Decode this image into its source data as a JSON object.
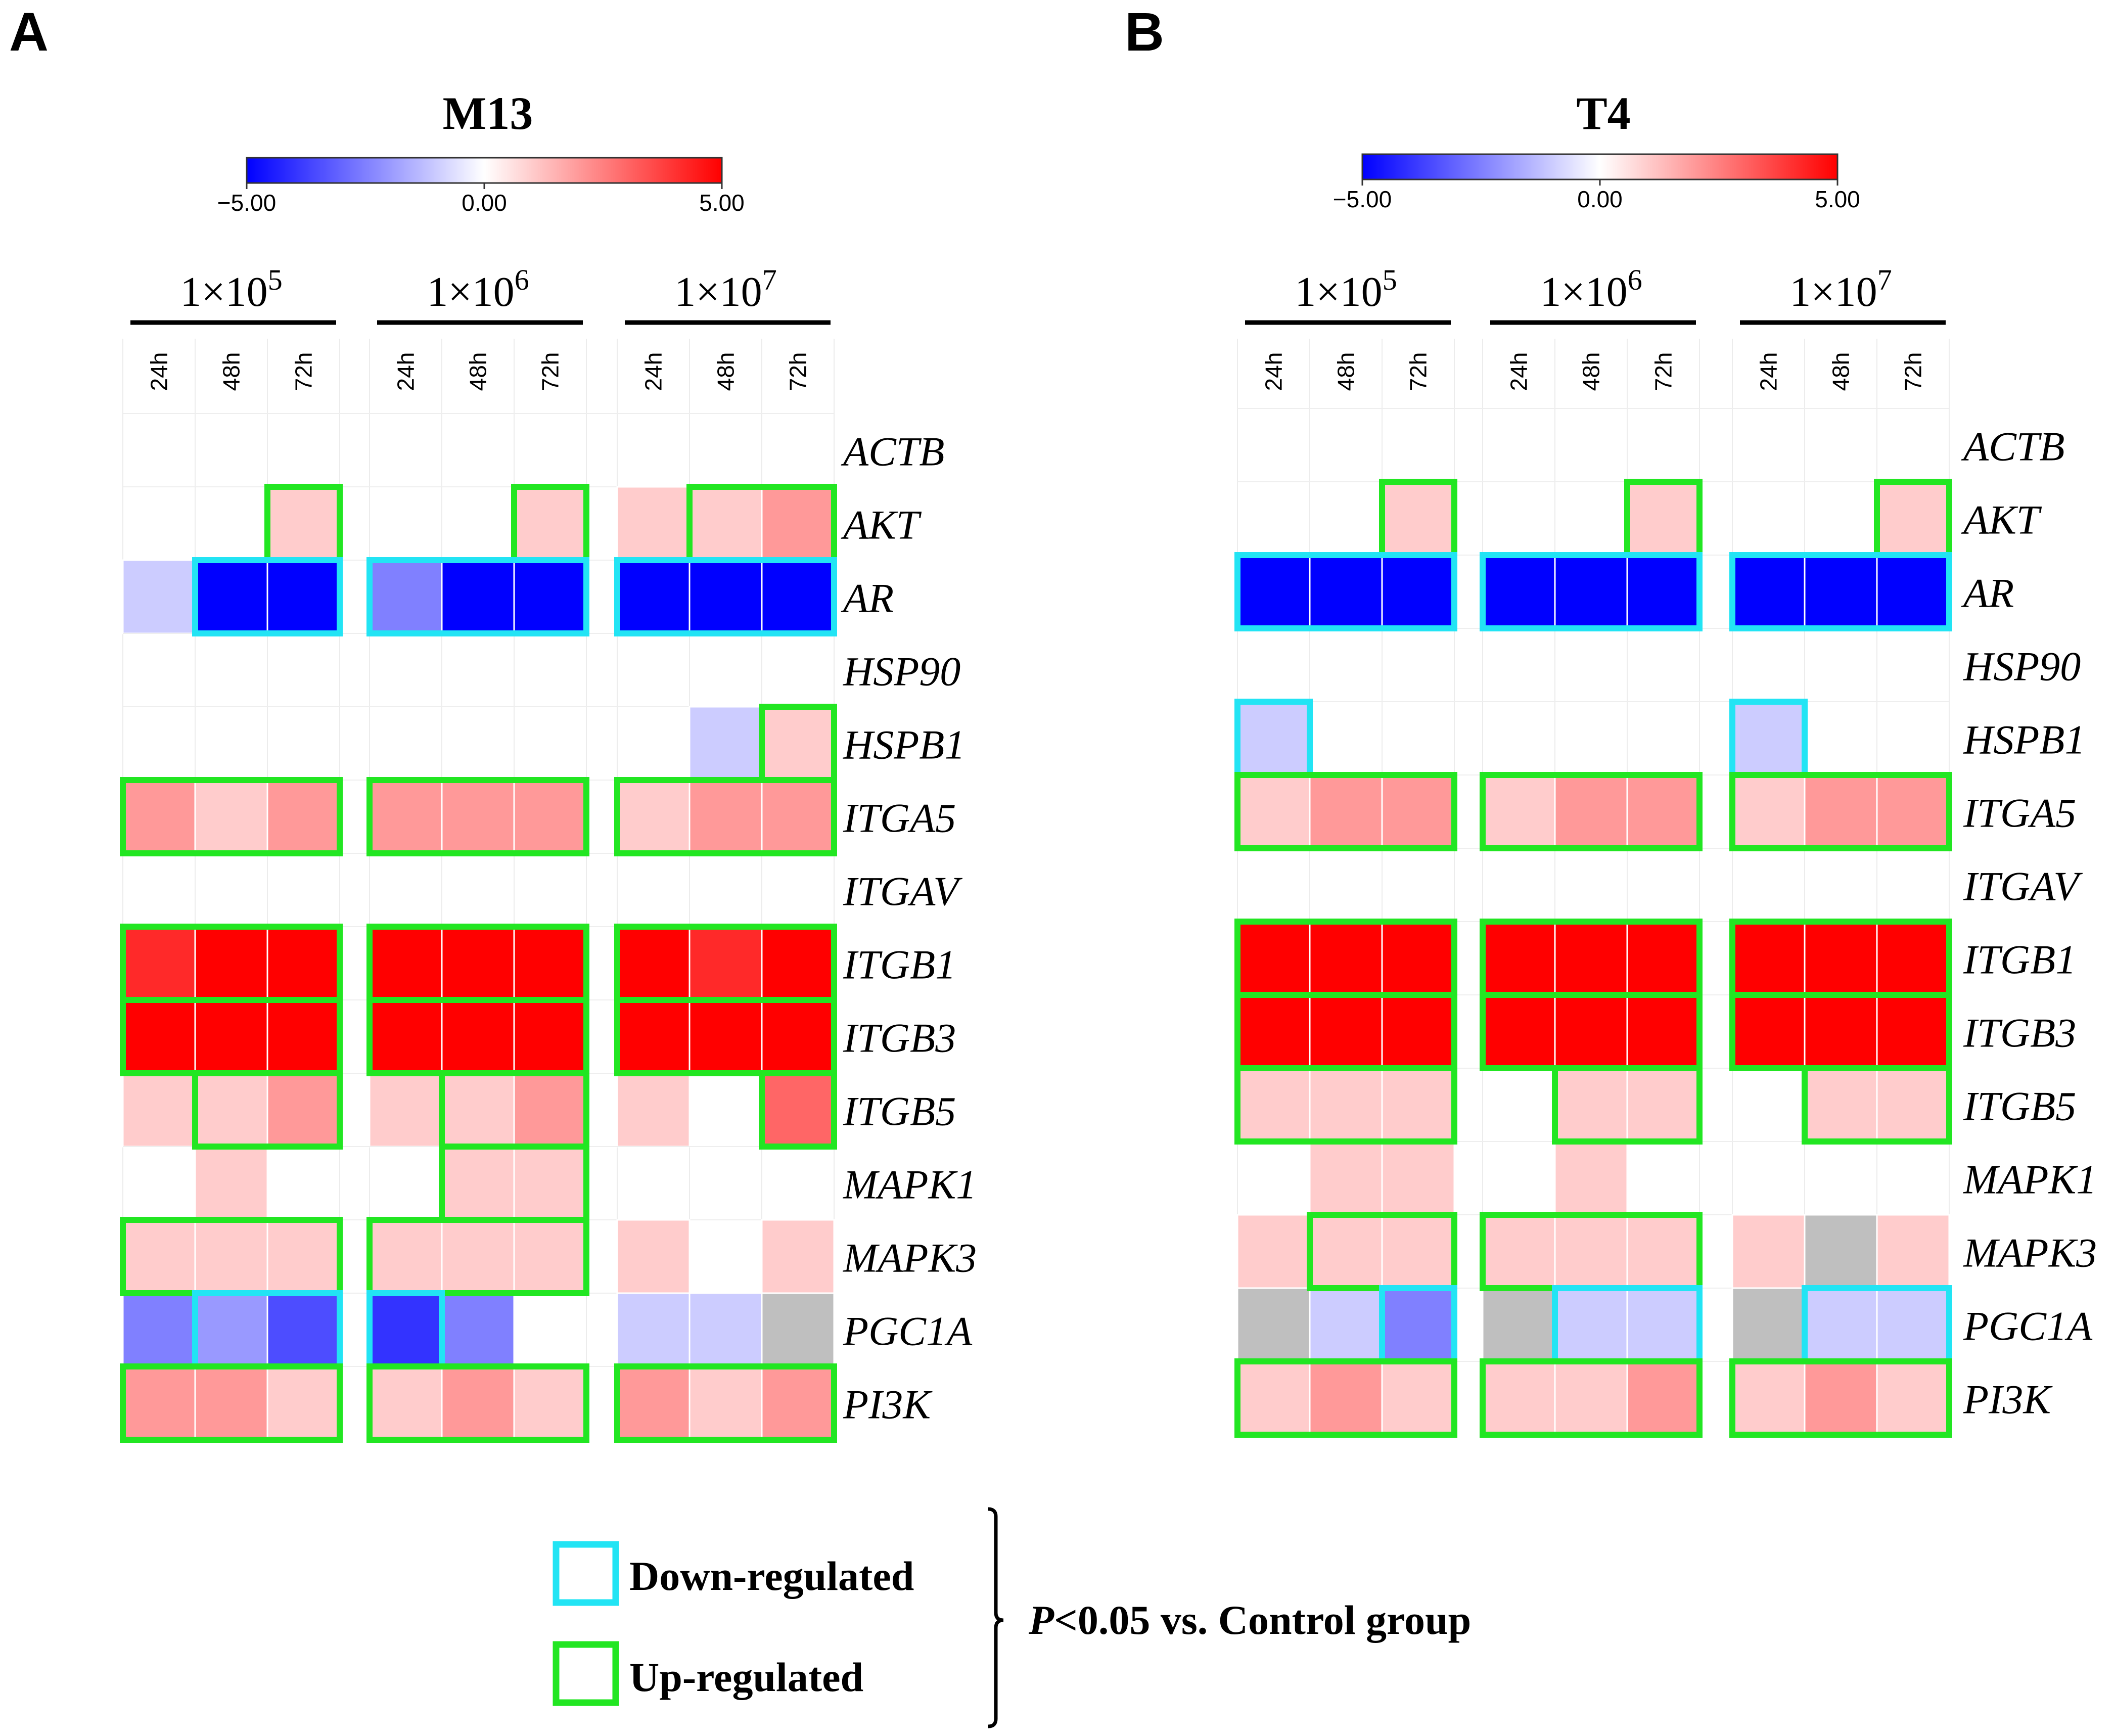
{
  "colors": {
    "low": "#0000ff",
    "mid": "#ffffff",
    "high": "#ff0000",
    "nodata": "#bfbfbf",
    "down_box": "#22e4f4",
    "up_box": "#22e622"
  },
  "legend": {
    "down_label": "Down-regulated",
    "up_label": "Up-regulated",
    "sig_p": "P",
    "sig_rest": "<0.05 vs. Control group"
  },
  "chart_data": [
    {
      "type": "heatmap",
      "panel_label": "A",
      "title": "M13",
      "color_scale": {
        "min": -5.0,
        "mid": 0.0,
        "max": 5.0,
        "tick_labels": [
          "−5.00",
          "0.00",
          "5.00"
        ]
      },
      "group_base": "1×10",
      "groups": [
        {
          "label": "1×10",
          "exp": "5"
        },
        {
          "label": "1×10",
          "exp": "6"
        },
        {
          "label": "1×10",
          "exp": "7"
        }
      ],
      "timepoints": [
        "24h",
        "48h",
        "72h"
      ],
      "genes": [
        "ACTB",
        "AKT",
        "AR",
        "HSP90",
        "HSPB1",
        "ITGA5",
        "ITGAV",
        "ITGB1",
        "ITGB3",
        "ITGB5",
        "MAPK1",
        "MAPK3",
        "PGC1A",
        "PI3K"
      ],
      "values": [
        [
          [
            0,
            0,
            0
          ],
          [
            0,
            0,
            0
          ],
          [
            0,
            0,
            0
          ]
        ],
        [
          [
            0,
            0,
            1
          ],
          [
            0,
            0,
            1
          ],
          [
            1,
            1,
            2
          ]
        ],
        [
          [
            -1,
            -5,
            -5
          ],
          [
            -2.5,
            -5,
            -5
          ],
          [
            -5,
            -5,
            -5
          ]
        ],
        [
          [
            0,
            0,
            0
          ],
          [
            0,
            0,
            0
          ],
          [
            0,
            0,
            0
          ]
        ],
        [
          [
            0,
            0,
            0
          ],
          [
            0,
            0,
            0
          ],
          [
            0,
            -1,
            1
          ]
        ],
        [
          [
            2,
            1,
            2
          ],
          [
            2,
            2,
            2
          ],
          [
            1,
            2,
            2
          ]
        ],
        [
          [
            0,
            0,
            0
          ],
          [
            0,
            0,
            0
          ],
          [
            0,
            0,
            0
          ]
        ],
        [
          [
            4.2,
            5,
            5
          ],
          [
            5,
            5,
            5
          ],
          [
            5,
            4.2,
            5
          ]
        ],
        [
          [
            5,
            5,
            5
          ],
          [
            5,
            5,
            5
          ],
          [
            5,
            5,
            5
          ]
        ],
        [
          [
            1,
            1,
            2
          ],
          [
            1,
            1,
            2
          ],
          [
            1,
            0,
            3
          ]
        ],
        [
          [
            0,
            1,
            0
          ],
          [
            0,
            1,
            1
          ],
          [
            0,
            0,
            0
          ]
        ],
        [
          [
            1,
            1,
            1
          ],
          [
            1,
            1,
            1
          ],
          [
            1,
            0,
            1
          ]
        ],
        [
          [
            -2.5,
            -2,
            -3.5
          ],
          [
            -4,
            -2.5,
            0
          ],
          [
            -1,
            -1,
            null
          ]
        ],
        [
          [
            2,
            2,
            1
          ],
          [
            1,
            2,
            1
          ],
          [
            2,
            1,
            2
          ]
        ]
      ],
      "significance": [
        {
          "direction": "up",
          "gene": "AKT",
          "group": 0,
          "from": 2,
          "to": 2
        },
        {
          "direction": "up",
          "gene": "AKT",
          "group": 1,
          "from": 2,
          "to": 2
        },
        {
          "direction": "up",
          "gene": "AKT",
          "group": 2,
          "from": 1,
          "to": 2
        },
        {
          "direction": "down",
          "gene": "AR",
          "group": 0,
          "from": 1,
          "to": 2
        },
        {
          "direction": "down",
          "gene": "AR",
          "group": 1,
          "from": 0,
          "to": 2
        },
        {
          "direction": "down",
          "gene": "AR",
          "group": 2,
          "from": 0,
          "to": 2
        },
        {
          "direction": "up",
          "gene": "HSPB1",
          "group": 2,
          "from": 2,
          "to": 2
        },
        {
          "direction": "up",
          "gene": "ITGA5",
          "group": 0,
          "from": 0,
          "to": 2
        },
        {
          "direction": "up",
          "gene": "ITGA5",
          "group": 1,
          "from": 0,
          "to": 2
        },
        {
          "direction": "up",
          "gene": "ITGA5",
          "group": 2,
          "from": 0,
          "to": 2
        },
        {
          "direction": "up",
          "gene": "ITGB1",
          "group": 0,
          "from": 0,
          "to": 2
        },
        {
          "direction": "up",
          "gene": "ITGB1",
          "group": 1,
          "from": 0,
          "to": 2
        },
        {
          "direction": "up",
          "gene": "ITGB1",
          "group": 2,
          "from": 0,
          "to": 2
        },
        {
          "direction": "up",
          "gene": "ITGB3",
          "group": 0,
          "from": 0,
          "to": 2
        },
        {
          "direction": "up",
          "gene": "ITGB3",
          "group": 1,
          "from": 0,
          "to": 2
        },
        {
          "direction": "up",
          "gene": "ITGB3",
          "group": 2,
          "from": 0,
          "to": 2
        },
        {
          "direction": "up",
          "gene": "ITGB5",
          "group": 0,
          "from": 1,
          "to": 2
        },
        {
          "direction": "up",
          "gene": "ITGB5",
          "group": 1,
          "from": 1,
          "to": 2
        },
        {
          "direction": "up",
          "gene": "ITGB5",
          "group": 2,
          "from": 2,
          "to": 2
        },
        {
          "direction": "up",
          "gene": "MAPK1",
          "group": 1,
          "from": 1,
          "to": 2
        },
        {
          "direction": "up",
          "gene": "MAPK3",
          "group": 0,
          "from": 0,
          "to": 2
        },
        {
          "direction": "up",
          "gene": "MAPK3",
          "group": 1,
          "from": 0,
          "to": 2
        },
        {
          "direction": "down",
          "gene": "PGC1A",
          "group": 0,
          "from": 1,
          "to": 2
        },
        {
          "direction": "down",
          "gene": "PGC1A",
          "group": 1,
          "from": 0,
          "to": 0
        },
        {
          "direction": "up",
          "gene": "PI3K",
          "group": 0,
          "from": 0,
          "to": 2
        },
        {
          "direction": "up",
          "gene": "PI3K",
          "group": 1,
          "from": 0,
          "to": 2
        },
        {
          "direction": "up",
          "gene": "PI3K",
          "group": 2,
          "from": 0,
          "to": 2
        }
      ]
    },
    {
      "type": "heatmap",
      "panel_label": "B",
      "title": "T4",
      "color_scale": {
        "min": -5.0,
        "mid": 0.0,
        "max": 5.0,
        "tick_labels": [
          "−5.00",
          "0.00",
          "5.00"
        ]
      },
      "group_base": "1×10",
      "groups": [
        {
          "label": "1×10",
          "exp": "5"
        },
        {
          "label": "1×10",
          "exp": "6"
        },
        {
          "label": "1×10",
          "exp": "7"
        }
      ],
      "timepoints": [
        "24h",
        "48h",
        "72h"
      ],
      "genes": [
        "ACTB",
        "AKT",
        "AR",
        "HSP90",
        "HSPB1",
        "ITGA5",
        "ITGAV",
        "ITGB1",
        "ITGB3",
        "ITGB5",
        "MAPK1",
        "MAPK3",
        "PGC1A",
        "PI3K"
      ],
      "values": [
        [
          [
            0,
            0,
            0
          ],
          [
            0,
            0,
            0
          ],
          [
            0,
            0,
            0
          ]
        ],
        [
          [
            0,
            0,
            1
          ],
          [
            0,
            0,
            1
          ],
          [
            0,
            0,
            1
          ]
        ],
        [
          [
            -5,
            -5,
            -5
          ],
          [
            -5,
            -5,
            -5
          ],
          [
            -5,
            -5,
            -5
          ]
        ],
        [
          [
            0,
            0,
            0
          ],
          [
            0,
            0,
            0
          ],
          [
            0,
            0,
            0
          ]
        ],
        [
          [
            -1,
            0,
            0
          ],
          [
            0,
            0,
            0
          ],
          [
            -1,
            0,
            0
          ]
        ],
        [
          [
            1,
            2,
            2
          ],
          [
            1,
            2,
            2
          ],
          [
            1,
            2,
            2
          ]
        ],
        [
          [
            0,
            0,
            0
          ],
          [
            0,
            0,
            0
          ],
          [
            0,
            0,
            0
          ]
        ],
        [
          [
            5,
            5,
            5
          ],
          [
            5,
            5,
            5
          ],
          [
            5,
            5,
            5
          ]
        ],
        [
          [
            5,
            5,
            5
          ],
          [
            5,
            5,
            5
          ],
          [
            5,
            5,
            5
          ]
        ],
        [
          [
            1,
            1,
            1
          ],
          [
            0,
            1,
            1
          ],
          [
            0,
            1,
            1
          ]
        ],
        [
          [
            0,
            1,
            1
          ],
          [
            0,
            1,
            0
          ],
          [
            0,
            0,
            0
          ]
        ],
        [
          [
            1,
            1,
            1
          ],
          [
            1,
            1,
            1
          ],
          [
            1,
            null,
            1
          ]
        ],
        [
          [
            null,
            -1,
            -2.5
          ],
          [
            null,
            -1,
            -1
          ],
          [
            null,
            -1,
            -1
          ]
        ],
        [
          [
            1,
            2,
            1
          ],
          [
            1,
            1,
            2
          ],
          [
            1,
            2,
            1
          ]
        ]
      ],
      "significance": [
        {
          "direction": "up",
          "gene": "AKT",
          "group": 0,
          "from": 2,
          "to": 2
        },
        {
          "direction": "up",
          "gene": "AKT",
          "group": 1,
          "from": 2,
          "to": 2
        },
        {
          "direction": "up",
          "gene": "AKT",
          "group": 2,
          "from": 2,
          "to": 2
        },
        {
          "direction": "down",
          "gene": "AR",
          "group": 0,
          "from": 0,
          "to": 2
        },
        {
          "direction": "down",
          "gene": "AR",
          "group": 1,
          "from": 0,
          "to": 2
        },
        {
          "direction": "down",
          "gene": "AR",
          "group": 2,
          "from": 0,
          "to": 2
        },
        {
          "direction": "down",
          "gene": "HSPB1",
          "group": 0,
          "from": 0,
          "to": 0
        },
        {
          "direction": "down",
          "gene": "HSPB1",
          "group": 2,
          "from": 0,
          "to": 0
        },
        {
          "direction": "up",
          "gene": "ITGA5",
          "group": 0,
          "from": 0,
          "to": 2
        },
        {
          "direction": "up",
          "gene": "ITGA5",
          "group": 1,
          "from": 0,
          "to": 2
        },
        {
          "direction": "up",
          "gene": "ITGA5",
          "group": 2,
          "from": 0,
          "to": 2
        },
        {
          "direction": "up",
          "gene": "ITGB1",
          "group": 0,
          "from": 0,
          "to": 2
        },
        {
          "direction": "up",
          "gene": "ITGB1",
          "group": 1,
          "from": 0,
          "to": 2
        },
        {
          "direction": "up",
          "gene": "ITGB1",
          "group": 2,
          "from": 0,
          "to": 2
        },
        {
          "direction": "up",
          "gene": "ITGB3",
          "group": 0,
          "from": 0,
          "to": 2
        },
        {
          "direction": "up",
          "gene": "ITGB3",
          "group": 1,
          "from": 0,
          "to": 2
        },
        {
          "direction": "up",
          "gene": "ITGB3",
          "group": 2,
          "from": 0,
          "to": 2
        },
        {
          "direction": "up",
          "gene": "ITGB5",
          "group": 0,
          "from": 0,
          "to": 2
        },
        {
          "direction": "up",
          "gene": "ITGB5",
          "group": 1,
          "from": 1,
          "to": 2
        },
        {
          "direction": "up",
          "gene": "ITGB5",
          "group": 2,
          "from": 1,
          "to": 2
        },
        {
          "direction": "up",
          "gene": "MAPK3",
          "group": 0,
          "from": 1,
          "to": 2
        },
        {
          "direction": "up",
          "gene": "MAPK3",
          "group": 1,
          "from": 0,
          "to": 2
        },
        {
          "direction": "down",
          "gene": "PGC1A",
          "group": 0,
          "from": 2,
          "to": 2
        },
        {
          "direction": "down",
          "gene": "PGC1A",
          "group": 1,
          "from": 1,
          "to": 2
        },
        {
          "direction": "down",
          "gene": "PGC1A",
          "group": 2,
          "from": 1,
          "to": 2
        },
        {
          "direction": "up",
          "gene": "PI3K",
          "group": 0,
          "from": 0,
          "to": 2
        },
        {
          "direction": "up",
          "gene": "PI3K",
          "group": 1,
          "from": 0,
          "to": 2
        },
        {
          "direction": "up",
          "gene": "PI3K",
          "group": 2,
          "from": 0,
          "to": 2
        }
      ]
    }
  ]
}
